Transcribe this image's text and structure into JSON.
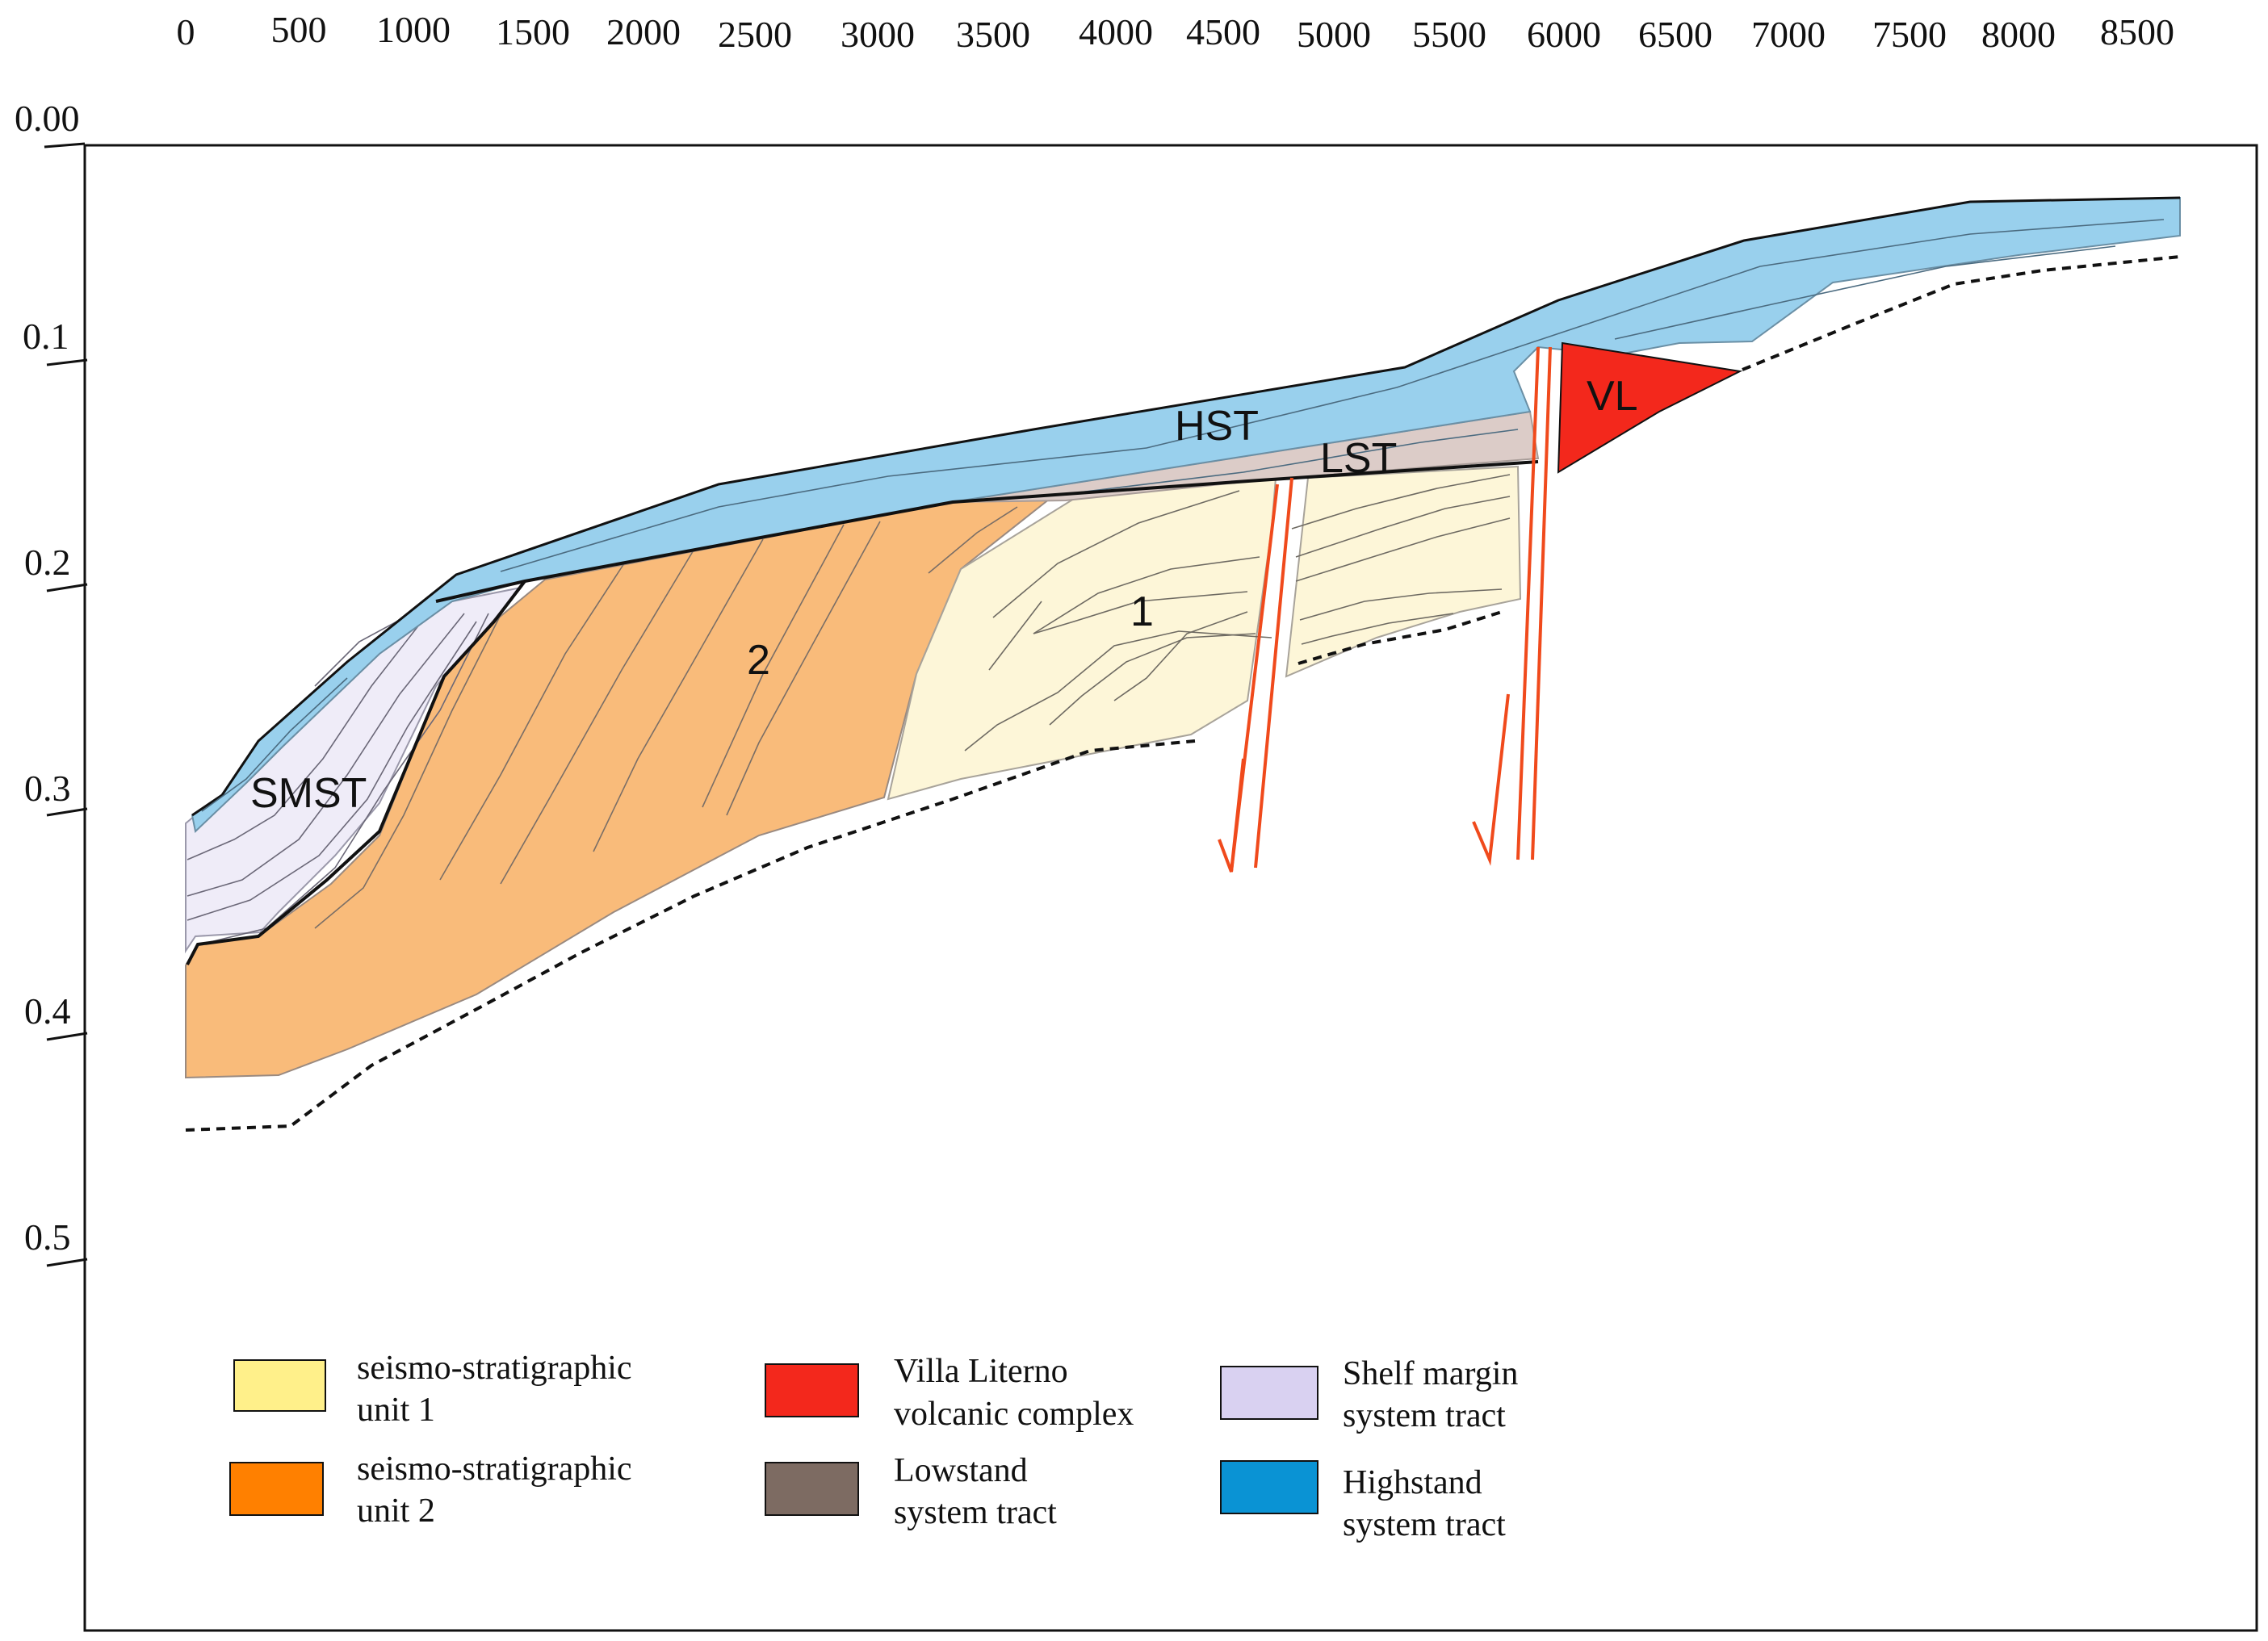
{
  "colors": {
    "unit1": "#fdf6d8",
    "unit1_legend": "#fff08a",
    "unit2": "#f9bb7a",
    "unit2_legend": "#ff8000",
    "villa_literno": "#f3281c",
    "lst": "#dcccc8",
    "lst_legend": "#7d6b62",
    "smst": "#efecf8",
    "smst_legend": "#d9d1f1",
    "hst": "#99d0ed",
    "hst_legend": "#0a93d4",
    "fault": "#f04a1c"
  },
  "x_axis": {
    "ticks": [
      "0",
      "500",
      "1000",
      "1500",
      "2000",
      "2500",
      "3000",
      "3500",
      "4000",
      "4500",
      "5000",
      "5500",
      "6000",
      "6500",
      "7000",
      "7500",
      "8000",
      "8500"
    ]
  },
  "y_axis": {
    "ticks": [
      "0.00",
      "0.1",
      "0.2",
      "0.3",
      "0.4",
      "0.5"
    ]
  },
  "labels": {
    "hst": "HST",
    "lst": "LST",
    "smst": "SMST",
    "vl": "VL",
    "unit1": "1",
    "unit2": "2"
  },
  "legend": [
    {
      "line1": "seismo-stratigraphic",
      "line2": "unit 1"
    },
    {
      "line1": "seismo-stratigraphic",
      "line2": "unit 2"
    },
    {
      "line1": "Villa Literno",
      "line2": "volcanic complex"
    },
    {
      "line1": "Lowstand",
      "line2": "system tract"
    },
    {
      "line1": "Shelf margin",
      "line2": "system tract"
    },
    {
      "line1": "Highstand",
      "line2": "system tract"
    }
  ]
}
